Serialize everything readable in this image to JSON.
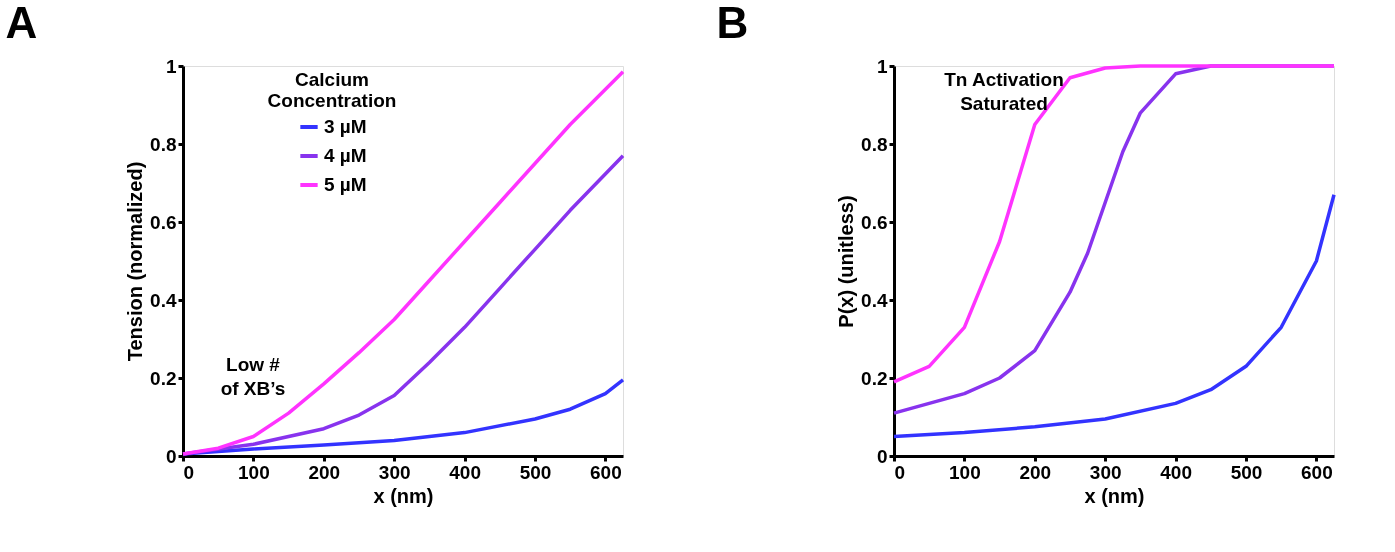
{
  "chart_data": [
    {
      "type": "line",
      "title": "A",
      "xlabel": "x (nm)",
      "ylabel": "Tension (normalized)",
      "legend_title": "Calcium Concentration",
      "legend": "top left",
      "grid": false,
      "marker": "none",
      "line_style": "solid",
      "xlim": [
        0,
        625
      ],
      "xticks": [
        0,
        100,
        200,
        300,
        400,
        500,
        600
      ],
      "ylim": [
        0,
        1
      ],
      "yticks": [
        0,
        0.2,
        0.4,
        0.6,
        0.8,
        1
      ],
      "annotations": [
        "Low # of XB’s"
      ],
      "series": [
        {
          "name": "3 µM",
          "color": "#3333ff",
          "x": [
            0,
            100,
            200,
            300,
            400,
            500,
            550,
            600,
            625
          ],
          "values": [
            0.005,
            0.018,
            0.028,
            0.04,
            0.06,
            0.095,
            0.12,
            0.16,
            0.195
          ]
        },
        {
          "name": "4 µM",
          "color": "#8833ee",
          "x": [
            0,
            100,
            200,
            250,
            300,
            350,
            400,
            450,
            500,
            550,
            625
          ],
          "values": [
            0.005,
            0.03,
            0.07,
            0.105,
            0.155,
            0.24,
            0.33,
            0.43,
            0.53,
            0.63,
            0.77
          ]
        },
        {
          "name": "5 µM",
          "color": "#ff33ff",
          "x": [
            0,
            50,
            100,
            150,
            200,
            250,
            300,
            350,
            400,
            450,
            500,
            550,
            625
          ],
          "values": [
            0.005,
            0.02,
            0.05,
            0.11,
            0.185,
            0.265,
            0.35,
            0.45,
            0.55,
            0.65,
            0.75,
            0.85,
            0.985
          ]
        }
      ]
    },
    {
      "type": "line",
      "title": "B",
      "xlabel": "x (nm)",
      "ylabel": "P(x) (unitless)",
      "legend": false,
      "grid": false,
      "marker": "none",
      "line_style": "solid",
      "xlim": [
        0,
        625
      ],
      "xticks": [
        0,
        100,
        200,
        300,
        400,
        500,
        600
      ],
      "ylim": [
        0,
        1
      ],
      "yticks": [
        0,
        0.2,
        0.4,
        0.6,
        0.8,
        1
      ],
      "annotations": [
        "Tn Activation Saturated"
      ],
      "series": [
        {
          "color": "#3333ff",
          "x": [
            0,
            100,
            200,
            300,
            400,
            450,
            500,
            550,
            600,
            625
          ],
          "values": [
            0.05,
            0.06,
            0.075,
            0.095,
            0.135,
            0.17,
            0.23,
            0.33,
            0.5,
            0.67
          ]
        },
        {
          "color": "#8833ee",
          "x": [
            0,
            100,
            150,
            200,
            250,
            275,
            300,
            325,
            350,
            400,
            450,
            625
          ],
          "values": [
            0.11,
            0.16,
            0.2,
            0.27,
            0.42,
            0.52,
            0.65,
            0.78,
            0.88,
            0.98,
            1,
            1
          ]
        },
        {
          "color": "#ff33ff",
          "x": [
            0,
            50,
            100,
            150,
            175,
            200,
            250,
            300,
            350,
            625
          ],
          "values": [
            0.19,
            0.23,
            0.33,
            0.55,
            0.7,
            0.85,
            0.97,
            0.995,
            1,
            1
          ]
        }
      ]
    }
  ]
}
